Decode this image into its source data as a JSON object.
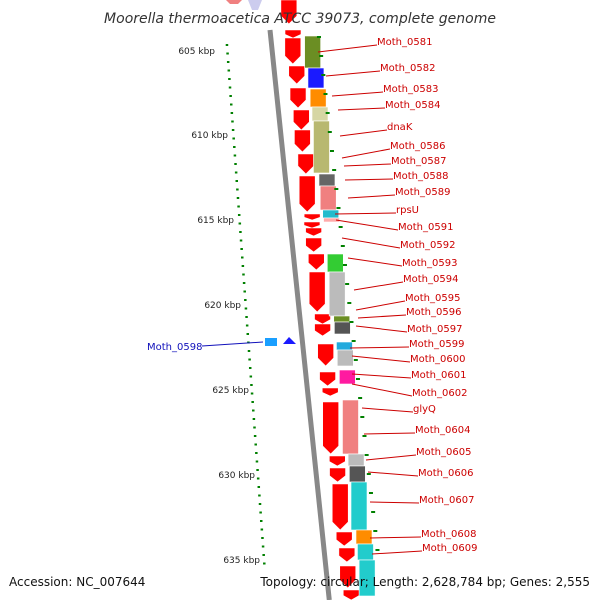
{
  "title": "Moorella thermoacetica ATCC 39073, complete genome",
  "footer": {
    "accession": "Accession: NC_007644",
    "topology": "Topology: circular; Length: 2,628,784 bp; Genes: 2,555"
  },
  "ruler": {
    "labels": [
      "605 kbp",
      "610 kbp",
      "615 kbp",
      "620 kbp",
      "625 kbp",
      "630 kbp",
      "635 kbp"
    ]
  },
  "genes": [
    {
      "name": "Moth_0581",
      "strand": "+",
      "cog": "#6b8e23"
    },
    {
      "name": "Moth_0582",
      "strand": "+",
      "cog": "#1a1aff"
    },
    {
      "name": "Moth_0583",
      "strand": "+",
      "cog": "#ff8c00"
    },
    {
      "name": "Moth_0584",
      "strand": "+",
      "cog": "#d6d6a3"
    },
    {
      "name": "dnaK",
      "strand": "+",
      "cog": "#b8b870"
    },
    {
      "name": "Moth_0586",
      "strand": "+",
      "cog": "#b8b870"
    },
    {
      "name": "Moth_0587",
      "strand": "+",
      "cog": "#b8b870"
    },
    {
      "name": "Moth_0588",
      "strand": "+",
      "cog": "#666666"
    },
    {
      "name": "Moth_0589",
      "strand": "+",
      "cog": "#f08080"
    },
    {
      "name": "rpsU",
      "strand": "+",
      "cog": "#22bbcc"
    },
    {
      "name": "Moth_0591",
      "strand": "+",
      "cog": "#ffaaaa"
    },
    {
      "name": "Moth_0592",
      "strand": "+",
      "cog": "#ffffff"
    },
    {
      "name": "Moth_0593",
      "strand": "+",
      "cog": "#33cc33"
    },
    {
      "name": "Moth_0594",
      "strand": "+",
      "cog": "#bbbbbb"
    },
    {
      "name": "Moth_0595",
      "strand": "+",
      "cog": "#bbbbbb"
    },
    {
      "name": "Moth_0596",
      "strand": "+",
      "cog": "#6b8e23"
    },
    {
      "name": "Moth_0597",
      "strand": "+",
      "cog": "#555555"
    },
    {
      "name": "Moth_0598",
      "strand": "-",
      "cog": "#1a9fff"
    },
    {
      "name": "Moth_0599",
      "strand": "+",
      "cog": "#22aadd"
    },
    {
      "name": "Moth_0600",
      "strand": "+",
      "cog": "#bbbbbb"
    },
    {
      "name": "Moth_0601",
      "strand": "+",
      "cog": "#ff1aa0"
    },
    {
      "name": "Moth_0602",
      "strand": "+",
      "cog": "#ff1aa0"
    },
    {
      "name": "glyQ",
      "strand": "+",
      "cog": "#f08080"
    },
    {
      "name": "Moth_0604",
      "strand": "+",
      "cog": "#f08080"
    },
    {
      "name": "Moth_0605",
      "strand": "+",
      "cog": "#bbbbbb"
    },
    {
      "name": "Moth_0606",
      "strand": "+",
      "cog": "#555555"
    },
    {
      "name": "Moth_0607",
      "strand": "+",
      "cog": "#22cccc"
    },
    {
      "name": "Moth_0608",
      "strand": "+",
      "cog": "#ff8c00"
    },
    {
      "name": "Moth_0609",
      "strand": "+",
      "cog": "#22cccc"
    }
  ],
  "colors": {
    "forward_arrow": "#ff0000",
    "reverse_arrow": "#1a1aff",
    "gene_label": "#cc0000",
    "reverse_label": "#1111bb",
    "ruler_dots": "#008000",
    "backbone": "#888888"
  }
}
